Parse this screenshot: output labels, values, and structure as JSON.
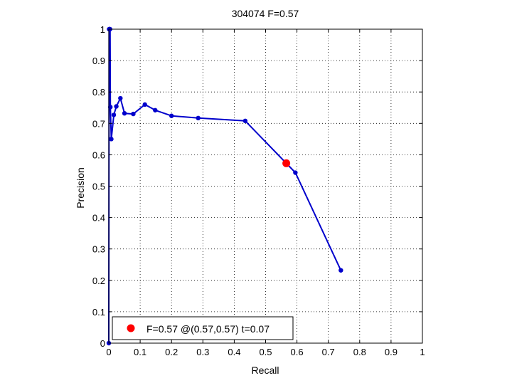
{
  "chart_data": {
    "type": "line",
    "title": "304074 F=0.57",
    "xlabel": "Recall",
    "ylabel": "Precision",
    "xlim": [
      0,
      1
    ],
    "ylim": [
      0,
      1
    ],
    "xticks": [
      0,
      0.1,
      0.2,
      0.3,
      0.4,
      0.5,
      0.6,
      0.7,
      0.8,
      0.9,
      1
    ],
    "yticks": [
      0,
      0.1,
      0.2,
      0.3,
      0.4,
      0.5,
      0.6,
      0.7,
      0.8,
      0.9,
      1
    ],
    "xtick_labels": [
      "0",
      "0.1",
      "0.2",
      "0.3",
      "0.4",
      "0.5",
      "0.6",
      "0.7",
      "0.8",
      "0.9",
      "1"
    ],
    "ytick_labels": [
      "0",
      "0.1",
      "0.2",
      "0.3",
      "0.4",
      "0.5",
      "0.6",
      "0.7",
      "0.8",
      "0.9",
      "1"
    ],
    "grid": true,
    "legend_position": "bottom-left",
    "series": [
      {
        "color": "#0000cc",
        "x": [
          0.74,
          0.595,
          0.435,
          0.285,
          0.2,
          0.148,
          0.115,
          0.078,
          0.05,
          0.037,
          0.024,
          0.016,
          0.008,
          0.005,
          0.004,
          0.003,
          0.002,
          0.001,
          0.0
        ],
        "y": [
          0.232,
          0.543,
          0.708,
          0.717,
          0.724,
          0.742,
          0.76,
          0.73,
          0.732,
          0.78,
          0.754,
          0.727,
          0.65,
          0.752,
          1.0,
          1.0,
          1.0,
          1.0,
          0.0
        ]
      }
    ],
    "marker": {
      "color": "#ff0000",
      "x": 0.566,
      "y": 0.573,
      "legend_label": "F=0.57 @(0.57,0.57) t=0.07"
    }
  }
}
